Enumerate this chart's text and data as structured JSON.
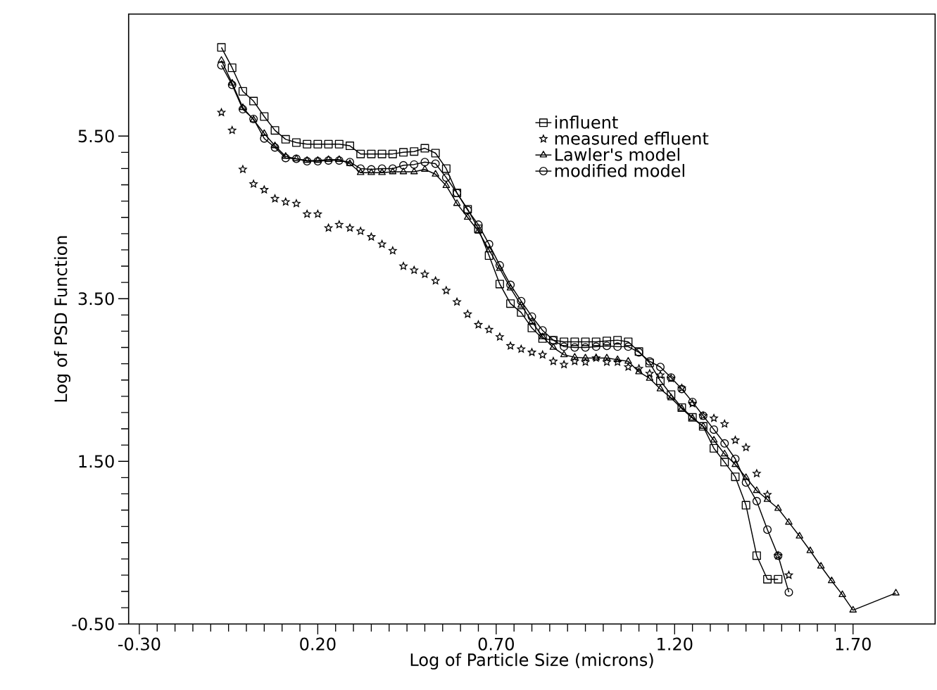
{
  "chart_data": {
    "type": "line",
    "xlabel": "Log of Particle Size (microns)",
    "ylabel": "Log of PSD Function",
    "xlim": [
      -0.33,
      1.93
    ],
    "ylim": [
      -0.5,
      7.0
    ],
    "xticks": [
      {
        "value": -0.3,
        "label": "-0.30"
      },
      {
        "value": 0.2,
        "label": "0.20"
      },
      {
        "value": 0.7,
        "label": "0.70"
      },
      {
        "value": 1.2,
        "label": "1.20"
      },
      {
        "value": 1.7,
        "label": "1.70"
      }
    ],
    "yticks": [
      {
        "value": -0.5,
        "label": "-0.50"
      },
      {
        "value": 1.5,
        "label": "1.50"
      },
      {
        "value": 3.5,
        "label": "3.50"
      },
      {
        "value": 5.5,
        "label": "5.50"
      }
    ],
    "grid": false,
    "legend": "top right",
    "line_style": "solid",
    "series": [
      {
        "name": "influent",
        "marker": "square",
        "color": "#000000",
        "x": [
          -0.07,
          -0.04,
          -0.01,
          0.02,
          0.05,
          0.08,
          0.11,
          0.14,
          0.17,
          0.2,
          0.23,
          0.26,
          0.29,
          0.32,
          0.35,
          0.38,
          0.41,
          0.44,
          0.47,
          0.5,
          0.53,
          0.56,
          0.59,
          0.62,
          0.65,
          0.68,
          0.71,
          0.74,
          0.77,
          0.8,
          0.83,
          0.86,
          0.89,
          0.92,
          0.95,
          0.98,
          1.01,
          1.04,
          1.07,
          1.1,
          1.13,
          1.16,
          1.19,
          1.22,
          1.25,
          1.28,
          1.31,
          1.34,
          1.37,
          1.4,
          1.43,
          1.46,
          1.49
        ],
        "values": [
          6.59,
          6.34,
          6.05,
          5.93,
          5.74,
          5.57,
          5.46,
          5.42,
          5.4,
          5.4,
          5.4,
          5.4,
          5.38,
          5.28,
          5.28,
          5.28,
          5.28,
          5.3,
          5.31,
          5.35,
          5.29,
          5.1,
          4.8,
          4.6,
          4.36,
          4.03,
          3.68,
          3.44,
          3.33,
          3.14,
          3.01,
          2.99,
          2.97,
          2.97,
          2.97,
          2.97,
          2.98,
          2.99,
          2.97,
          2.85,
          2.71,
          2.49,
          2.32,
          2.16,
          2.04,
          1.93,
          1.66,
          1.49,
          1.31,
          0.96,
          0.34,
          0.05,
          0.05
        ]
      },
      {
        "name": "measured effluent",
        "type": "scatter",
        "marker": "star",
        "color": "#000000",
        "x": [
          -0.07,
          -0.04,
          -0.01,
          0.02,
          0.05,
          0.08,
          0.11,
          0.14,
          0.17,
          0.2,
          0.23,
          0.26,
          0.29,
          0.32,
          0.35,
          0.38,
          0.41,
          0.44,
          0.47,
          0.5,
          0.53,
          0.56,
          0.59,
          0.62,
          0.65,
          0.68,
          0.71,
          0.74,
          0.77,
          0.8,
          0.83,
          0.86,
          0.89,
          0.92,
          0.95,
          0.98,
          1.01,
          1.04,
          1.07,
          1.1,
          1.13,
          1.16,
          1.19,
          1.22,
          1.25,
          1.28,
          1.31,
          1.34,
          1.37,
          1.4,
          1.43,
          1.46,
          1.49,
          1.52
        ],
        "values": [
          5.79,
          5.57,
          5.09,
          4.91,
          4.84,
          4.73,
          4.69,
          4.67,
          4.54,
          4.54,
          4.37,
          4.41,
          4.37,
          4.33,
          4.26,
          4.17,
          4.09,
          3.9,
          3.85,
          3.8,
          3.72,
          3.6,
          3.46,
          3.31,
          3.18,
          3.12,
          3.03,
          2.92,
          2.88,
          2.84,
          2.81,
          2.73,
          2.69,
          2.73,
          2.72,
          2.77,
          2.72,
          2.72,
          2.66,
          2.64,
          2.58,
          2.56,
          2.52,
          2.4,
          2.21,
          2.06,
          2.03,
          1.96,
          1.76,
          1.67,
          1.35,
          1.09,
          0.34,
          0.1
        ]
      },
      {
        "name": "Lawler's model",
        "marker": "triangle",
        "color": "#000000",
        "x": [
          -0.07,
          -0.04,
          -0.01,
          0.02,
          0.05,
          0.08,
          0.11,
          0.14,
          0.17,
          0.2,
          0.23,
          0.26,
          0.29,
          0.32,
          0.35,
          0.38,
          0.41,
          0.44,
          0.47,
          0.5,
          0.53,
          0.56,
          0.59,
          0.62,
          0.65,
          0.68,
          0.71,
          0.74,
          0.77,
          0.8,
          0.83,
          0.86,
          0.89,
          0.92,
          0.95,
          0.98,
          1.01,
          1.04,
          1.07,
          1.1,
          1.13,
          1.16,
          1.19,
          1.22,
          1.25,
          1.28,
          1.31,
          1.34,
          1.37,
          1.4,
          1.43,
          1.46,
          1.49,
          1.52,
          1.55,
          1.58,
          1.61,
          1.64,
          1.67,
          1.7,
          1.82
        ],
        "values": [
          6.43,
          6.15,
          5.85,
          5.7,
          5.53,
          5.38,
          5.25,
          5.22,
          5.2,
          5.2,
          5.21,
          5.21,
          5.16,
          5.05,
          5.05,
          5.05,
          5.06,
          5.06,
          5.06,
          5.09,
          5.03,
          4.89,
          4.67,
          4.5,
          4.33,
          4.1,
          3.87,
          3.63,
          3.42,
          3.22,
          3.03,
          2.9,
          2.81,
          2.78,
          2.77,
          2.77,
          2.77,
          2.75,
          2.73,
          2.6,
          2.52,
          2.39,
          2.28,
          2.15,
          2.03,
          1.93,
          1.76,
          1.59,
          1.46,
          1.3,
          1.14,
          1.03,
          0.92,
          0.75,
          0.58,
          0.4,
          0.21,
          0.03,
          -0.14,
          -0.33,
          -0.12
        ]
      },
      {
        "name": "modified model",
        "marker": "circle",
        "color": "#000000",
        "x": [
          -0.07,
          -0.04,
          -0.01,
          0.02,
          0.05,
          0.08,
          0.11,
          0.14,
          0.17,
          0.2,
          0.23,
          0.26,
          0.29,
          0.32,
          0.35,
          0.38,
          0.41,
          0.44,
          0.47,
          0.5,
          0.53,
          0.56,
          0.59,
          0.62,
          0.65,
          0.68,
          0.71,
          0.74,
          0.77,
          0.8,
          0.83,
          0.86,
          0.89,
          0.92,
          0.95,
          0.98,
          1.01,
          1.04,
          1.07,
          1.1,
          1.13,
          1.16,
          1.19,
          1.22,
          1.25,
          1.28,
          1.31,
          1.34,
          1.37,
          1.4,
          1.43,
          1.46,
          1.49,
          1.52
        ],
        "values": [
          6.37,
          6.13,
          5.83,
          5.71,
          5.47,
          5.36,
          5.23,
          5.22,
          5.19,
          5.19,
          5.2,
          5.2,
          5.18,
          5.1,
          5.09,
          5.1,
          5.1,
          5.14,
          5.15,
          5.18,
          5.16,
          4.99,
          4.8,
          4.59,
          4.41,
          4.17,
          3.91,
          3.67,
          3.47,
          3.28,
          3.11,
          2.99,
          2.91,
          2.9,
          2.9,
          2.91,
          2.92,
          2.91,
          2.91,
          2.84,
          2.73,
          2.66,
          2.53,
          2.39,
          2.23,
          2.06,
          1.89,
          1.72,
          1.53,
          1.24,
          1.01,
          0.66,
          0.34,
          -0.11
        ]
      }
    ]
  }
}
